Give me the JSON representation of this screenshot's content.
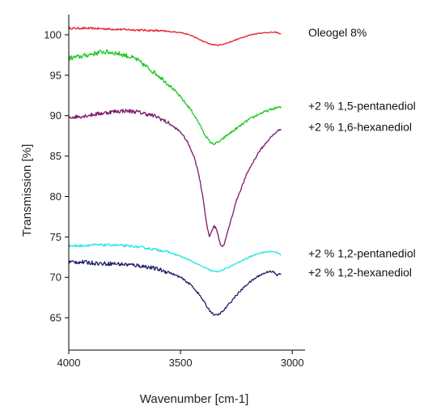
{
  "chart_data": {
    "type": "line",
    "title": "",
    "xlabel": "Wavenumber [cm-1]",
    "ylabel": "Transmission [%]",
    "xlim": [
      4000,
      2950
    ],
    "ylim": [
      61,
      102.5
    ],
    "x_reversed": true,
    "x_ticks": [
      4000,
      3500,
      3000
    ],
    "y_ticks": [
      65,
      70,
      75,
      80,
      85,
      90,
      95,
      100
    ],
    "grid": false,
    "legend_placement": "right",
    "series": [
      {
        "name": "Oleogel 8%",
        "color": "#e8202a",
        "noise": 0.12,
        "points": [
          [
            4000,
            100.8
          ],
          [
            3900,
            100.8
          ],
          [
            3800,
            100.7
          ],
          [
            3700,
            100.6
          ],
          [
            3600,
            100.5
          ],
          [
            3500,
            100.3
          ],
          [
            3450,
            99.9
          ],
          [
            3400,
            99.2
          ],
          [
            3360,
            98.8
          ],
          [
            3330,
            98.7
          ],
          [
            3300,
            98.9
          ],
          [
            3250,
            99.4
          ],
          [
            3200,
            99.9
          ],
          [
            3150,
            100.2
          ],
          [
            3100,
            100.3
          ],
          [
            3070,
            100.3
          ],
          [
            3050,
            100.1
          ]
        ]
      },
      {
        "name": "+2 % 1,5-pentanediol",
        "color": "#22c92a",
        "noise": 0.3,
        "points": [
          [
            4000,
            97.1
          ],
          [
            3950,
            97.3
          ],
          [
            3900,
            97.6
          ],
          [
            3850,
            97.9
          ],
          [
            3800,
            97.8
          ],
          [
            3750,
            97.5
          ],
          [
            3700,
            97.0
          ],
          [
            3650,
            96.0
          ],
          [
            3600,
            95.0
          ],
          [
            3550,
            93.8
          ],
          [
            3500,
            92.3
          ],
          [
            3450,
            90.6
          ],
          [
            3420,
            89.2
          ],
          [
            3390,
            87.6
          ],
          [
            3370,
            86.8
          ],
          [
            3355,
            86.5
          ],
          [
            3340,
            86.6
          ],
          [
            3320,
            86.9
          ],
          [
            3300,
            87.4
          ],
          [
            3250,
            88.4
          ],
          [
            3200,
            89.4
          ],
          [
            3150,
            90.2
          ],
          [
            3100,
            90.7
          ],
          [
            3070,
            91.0
          ],
          [
            3050,
            91.0
          ]
        ]
      },
      {
        "name": "+2 % 1,6-hexanediol",
        "color": "#7b1a6e",
        "noise": 0.25,
        "points": [
          [
            4000,
            89.8
          ],
          [
            3950,
            89.9
          ],
          [
            3900,
            90.1
          ],
          [
            3850,
            90.3
          ],
          [
            3800,
            90.5
          ],
          [
            3750,
            90.6
          ],
          [
            3700,
            90.5
          ],
          [
            3650,
            90.2
          ],
          [
            3600,
            89.8
          ],
          [
            3550,
            89.0
          ],
          [
            3500,
            88.0
          ],
          [
            3470,
            86.8
          ],
          [
            3440,
            85.0
          ],
          [
            3420,
            83.0
          ],
          [
            3400,
            80.0
          ],
          [
            3390,
            78.0
          ],
          [
            3380,
            76.0
          ],
          [
            3370,
            75.0
          ],
          [
            3360,
            75.8
          ],
          [
            3350,
            76.3
          ],
          [
            3340,
            76.1
          ],
          [
            3330,
            75.0
          ],
          [
            3320,
            74.0
          ],
          [
            3310,
            73.8
          ],
          [
            3300,
            74.5
          ],
          [
            3280,
            76.5
          ],
          [
            3250,
            79.5
          ],
          [
            3200,
            83.0
          ],
          [
            3150,
            85.5
          ],
          [
            3100,
            87.2
          ],
          [
            3070,
            88.0
          ],
          [
            3050,
            88.4
          ]
        ]
      },
      {
        "name": "+2 % 1,2-pentanediol",
        "color": "#1ee6e6",
        "noise": 0.15,
        "points": [
          [
            4000,
            73.9
          ],
          [
            3950,
            73.9
          ],
          [
            3900,
            74.0
          ],
          [
            3850,
            74.0
          ],
          [
            3800,
            74.0
          ],
          [
            3750,
            73.9
          ],
          [
            3700,
            73.8
          ],
          [
            3650,
            73.6
          ],
          [
            3600,
            73.4
          ],
          [
            3550,
            73.1
          ],
          [
            3500,
            72.6
          ],
          [
            3450,
            72.0
          ],
          [
            3400,
            71.3
          ],
          [
            3360,
            70.8
          ],
          [
            3340,
            70.7
          ],
          [
            3320,
            70.8
          ],
          [
            3280,
            71.3
          ],
          [
            3250,
            71.7
          ],
          [
            3200,
            72.4
          ],
          [
            3150,
            73.0
          ],
          [
            3100,
            73.2
          ],
          [
            3070,
            73.1
          ],
          [
            3050,
            72.8
          ]
        ]
      },
      {
        "name": "+2 % 1,2-hexanediol",
        "color": "#1c1f66",
        "noise": 0.25,
        "points": [
          [
            4000,
            71.9
          ],
          [
            3950,
            71.9
          ],
          [
            3900,
            71.8
          ],
          [
            3850,
            71.7
          ],
          [
            3800,
            71.7
          ],
          [
            3750,
            71.6
          ],
          [
            3700,
            71.5
          ],
          [
            3650,
            71.3
          ],
          [
            3600,
            71.0
          ],
          [
            3550,
            70.6
          ],
          [
            3500,
            70.0
          ],
          [
            3450,
            69.0
          ],
          [
            3420,
            68.0
          ],
          [
            3400,
            67.2
          ],
          [
            3380,
            66.3
          ],
          [
            3360,
            65.6
          ],
          [
            3345,
            65.3
          ],
          [
            3330,
            65.4
          ],
          [
            3310,
            65.8
          ],
          [
            3280,
            66.8
          ],
          [
            3250,
            67.8
          ],
          [
            3200,
            69.2
          ],
          [
            3150,
            70.2
          ],
          [
            3100,
            70.8
          ],
          [
            3080,
            70.6
          ],
          [
            3070,
            70.2
          ],
          [
            3060,
            70.4
          ],
          [
            3050,
            70.4
          ]
        ]
      }
    ]
  }
}
